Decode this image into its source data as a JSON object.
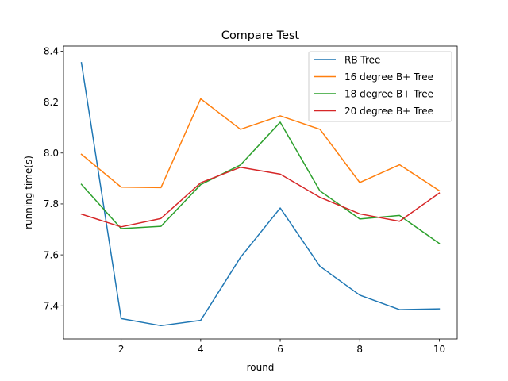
{
  "chart_data": {
    "type": "line",
    "title": "Compare Test",
    "xlabel": "round",
    "ylabel": "running time(s)",
    "x": [
      1,
      2,
      3,
      4,
      5,
      6,
      7,
      8,
      9,
      10
    ],
    "xlim": [
      0.55,
      10.45
    ],
    "ylim": [
      7.27,
      8.42
    ],
    "xticks": [
      2,
      4,
      6,
      8,
      10
    ],
    "yticks": [
      7.4,
      7.6,
      7.8,
      8.0,
      8.2,
      8.4
    ],
    "ytick_labels": [
      "7.4",
      "7.6",
      "7.8",
      "8.0",
      "8.2",
      "8.4"
    ],
    "grid": false,
    "legend_position": "top-right",
    "series": [
      {
        "name": "RB Tree",
        "color": "#1f77b4",
        "values": [
          8.355,
          7.35,
          7.322,
          7.343,
          7.59,
          7.784,
          7.555,
          7.442,
          7.385,
          7.388
        ]
      },
      {
        "name": "16 degree B+ Tree",
        "color": "#ff7f0e",
        "values": [
          7.995,
          7.866,
          7.864,
          8.213,
          8.093,
          8.146,
          8.093,
          7.884,
          7.954,
          7.852
        ]
      },
      {
        "name": "18 degree B+ Tree",
        "color": "#2ca02c",
        "values": [
          7.877,
          7.703,
          7.712,
          7.876,
          7.953,
          8.121,
          7.851,
          7.741,
          7.755,
          7.645
        ]
      },
      {
        "name": "20 degree B+ Tree",
        "color": "#d62728",
        "values": [
          7.76,
          7.71,
          7.743,
          7.883,
          7.944,
          7.917,
          7.826,
          7.761,
          7.732,
          7.843
        ]
      }
    ]
  }
}
